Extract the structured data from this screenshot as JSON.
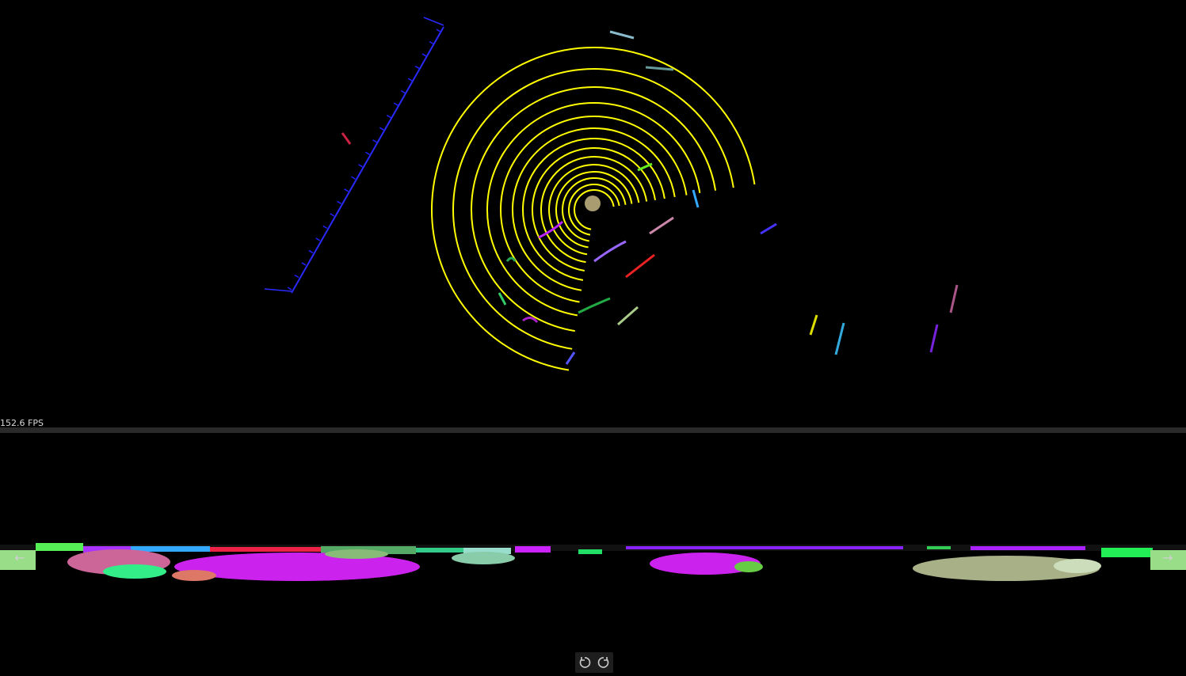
{
  "viewer": {
    "fps_label": "152.6 FPS"
  },
  "colors": {
    "background": "#000000",
    "ring": "#ffff00",
    "wall": "#2020ff",
    "divider": "#2a2a2a"
  },
  "icons": {
    "prev": "arrow-left-icon",
    "next": "arrow-right-icon",
    "rotate_left": "rotate-ccw-icon",
    "rotate_right": "rotate-cw-icon"
  }
}
